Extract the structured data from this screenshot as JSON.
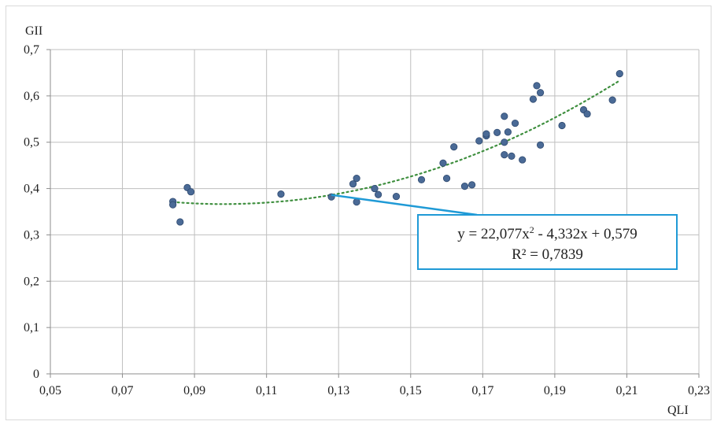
{
  "chart_data": {
    "type": "scatter",
    "title": "",
    "xlabel": "QLI",
    "ylabel": "GII",
    "xlim": [
      0.05,
      0.23
    ],
    "ylim": [
      0,
      0.7
    ],
    "x_ticks": [
      0.05,
      0.07,
      0.09,
      0.11,
      0.13,
      0.15,
      0.17,
      0.19,
      0.21,
      0.23
    ],
    "x_tick_labels": [
      "0,05",
      "0,07",
      "0,09",
      "0,11",
      "0,13",
      "0,15",
      "0,17",
      "0,19",
      "0,21",
      "0,23"
    ],
    "y_ticks": [
      0,
      0.1,
      0.2,
      0.3,
      0.4,
      0.5,
      0.6,
      0.7
    ],
    "y_tick_labels": [
      "0",
      "0,1",
      "0,2",
      "0,3",
      "0,4",
      "0,5",
      "0,6",
      "0,7"
    ],
    "grid": true,
    "marker_color": "#4a6a96",
    "trendline_color": "#3f8f3f",
    "callout_color": "#1f9ad6",
    "points": [
      [
        0.084,
        0.372
      ],
      [
        0.084,
        0.365
      ],
      [
        0.086,
        0.328
      ],
      [
        0.088,
        0.402
      ],
      [
        0.089,
        0.393
      ],
      [
        0.114,
        0.388
      ],
      [
        0.128,
        0.382
      ],
      [
        0.134,
        0.41
      ],
      [
        0.135,
        0.422
      ],
      [
        0.135,
        0.371
      ],
      [
        0.14,
        0.4
      ],
      [
        0.141,
        0.387
      ],
      [
        0.146,
        0.383
      ],
      [
        0.153,
        0.419
      ],
      [
        0.159,
        0.455
      ],
      [
        0.16,
        0.422
      ],
      [
        0.162,
        0.49
      ],
      [
        0.165,
        0.405
      ],
      [
        0.167,
        0.408
      ],
      [
        0.169,
        0.503
      ],
      [
        0.171,
        0.514
      ],
      [
        0.171,
        0.518
      ],
      [
        0.174,
        0.521
      ],
      [
        0.176,
        0.556
      ],
      [
        0.176,
        0.5
      ],
      [
        0.176,
        0.473
      ],
      [
        0.177,
        0.522
      ],
      [
        0.178,
        0.47
      ],
      [
        0.179,
        0.541
      ],
      [
        0.181,
        0.462
      ],
      [
        0.184,
        0.593
      ],
      [
        0.185,
        0.622
      ],
      [
        0.186,
        0.607
      ],
      [
        0.186,
        0.494
      ],
      [
        0.192,
        0.536
      ],
      [
        0.198,
        0.57
      ],
      [
        0.199,
        0.561
      ],
      [
        0.206,
        0.591
      ],
      [
        0.208,
        0.648
      ]
    ],
    "trendline": {
      "type": "polynomial",
      "coefficients": [
        22.077,
        -4.332,
        0.579
      ],
      "x_range": [
        0.084,
        0.208
      ],
      "equation_text_prefix": "y = 22,077x",
      "equation_superscript": "2",
      "equation_text_suffix": " - 4,332x + 0,579",
      "r2_text": "R² = 0,7839"
    }
  }
}
